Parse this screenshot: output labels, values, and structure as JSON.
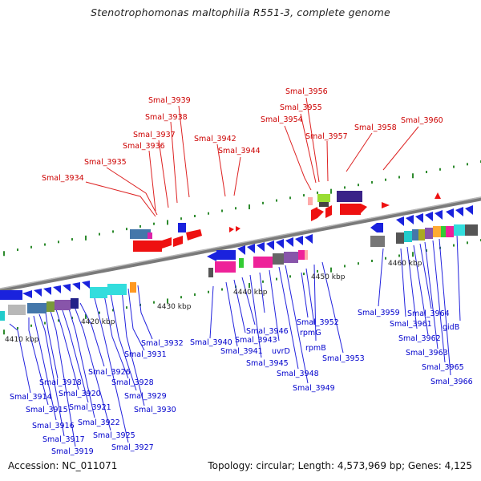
{
  "title": "Stenotrophomonas maltophilia R551-3, complete genome",
  "footer": {
    "accession": "Accession: NC_011071",
    "topology": "Topology: circular; Length: 4,573,969 bp; Genes: 4,125"
  },
  "kbp_labels": [
    "4410 kbp",
    "4420 kbp",
    "4430 kbp",
    "4440 kbp",
    "4450 kbp",
    "4460 kbp"
  ],
  "upper_genes": [
    "Smal_3934",
    "Smal_3935",
    "Smal_3936",
    "Smal_3937",
    "Smal_3938",
    "Smal_3939",
    "Smal_3942",
    "Smal_3944",
    "Smal_3954",
    "Smal_3955",
    "Smal_3956",
    "Smal_3957",
    "Smal_3958",
    "Smal_3960"
  ],
  "lower_genes": [
    "Smal_3914",
    "Smal_3915",
    "Smal_3916",
    "Smal_3917",
    "Smal_3918",
    "Smal_3919",
    "Smal_3920",
    "Smal_3921",
    "Smal_3922",
    "Smal_3925",
    "Smal_3926",
    "Smal_3927",
    "Smal_3928",
    "Smal_3929",
    "Smal_3930",
    "Smal_3931",
    "Smal_3932",
    "Smal_3940",
    "Smal_3941",
    "Smal_3943",
    "Smal_3945",
    "Smal_3946",
    "uvrD",
    "Smal_3948",
    "Smal_3949",
    "Smal_3952",
    "rpmG",
    "rpmB",
    "Smal_3953",
    "Smal_3959",
    "Smal_3961",
    "Smal_3962",
    "Smal_3963",
    "Smal_3964",
    "Smal_3965",
    "Smal_3966",
    "gidB"
  ],
  "colors": {
    "forward_strand_label": "#cc0000",
    "reverse_strand_label": "#0000cc",
    "backbone": "#8a8a8a",
    "tick": "#2e8b2e"
  }
}
